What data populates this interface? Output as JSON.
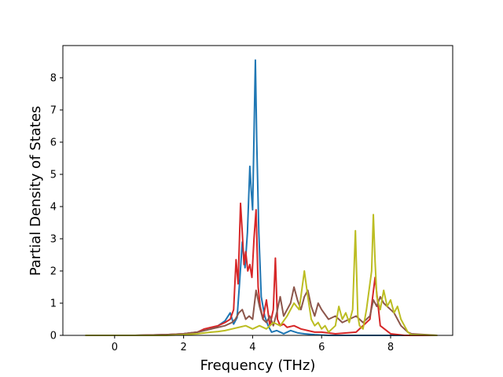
{
  "chart_data": {
    "type": "line",
    "title": "",
    "xlabel": "Frequency (THz)",
    "ylabel": "Partial Density of States",
    "xlim": [
      -1.5,
      9.8
    ],
    "ylim": [
      0,
      9.0
    ],
    "xticks": [
      0,
      2,
      4,
      6,
      8
    ],
    "yticks": [
      0,
      1,
      2,
      3,
      4,
      5,
      6,
      7,
      8
    ],
    "grid": false,
    "legend": "none",
    "series": [
      {
        "color": "#1f77b4",
        "x": [
          -0.85,
          0.6,
          1.5,
          2.0,
          2.4,
          2.8,
          3.0,
          3.2,
          3.35,
          3.45,
          3.55,
          3.62,
          3.7,
          3.78,
          3.85,
          3.92,
          3.96,
          4.0,
          4.04,
          4.08,
          4.12,
          4.18,
          4.25,
          4.35,
          4.45,
          4.55,
          4.7,
          4.9,
          5.1,
          5.3,
          5.5,
          5.8,
          6.2,
          6.6,
          7.0,
          7.5,
          8.0,
          8.4,
          9.35
        ],
        "y": [
          0.0,
          0.0,
          0.02,
          0.05,
          0.1,
          0.2,
          0.3,
          0.45,
          0.7,
          0.35,
          0.55,
          1.6,
          2.9,
          2.1,
          3.2,
          5.25,
          4.5,
          3.9,
          6.2,
          8.55,
          6.0,
          3.2,
          1.2,
          0.6,
          0.3,
          0.1,
          0.15,
          0.05,
          0.15,
          0.08,
          0.05,
          0.02,
          0.0,
          0.0,
          0.0,
          0.0,
          0.0,
          0.0,
          0.0
        ]
      },
      {
        "color": "#d62728",
        "x": [
          -0.85,
          0.6,
          1.5,
          2.0,
          2.4,
          2.6,
          2.8,
          3.0,
          3.2,
          3.35,
          3.45,
          3.52,
          3.58,
          3.65,
          3.7,
          3.75,
          3.8,
          3.86,
          3.92,
          3.98,
          4.04,
          4.1,
          4.16,
          4.22,
          4.3,
          4.4,
          4.5,
          4.6,
          4.66,
          4.72,
          4.8,
          4.9,
          5.0,
          5.2,
          5.4,
          5.6,
          5.8,
          6.0,
          6.4,
          7.0,
          7.4,
          7.55,
          7.7,
          8.0,
          8.4,
          9.35
        ],
        "y": [
          0.0,
          0.0,
          0.02,
          0.05,
          0.1,
          0.2,
          0.25,
          0.3,
          0.4,
          0.5,
          0.8,
          2.35,
          1.6,
          4.1,
          3.2,
          2.2,
          2.6,
          2.0,
          2.2,
          1.8,
          3.0,
          3.9,
          1.5,
          0.9,
          0.5,
          1.1,
          0.3,
          0.8,
          2.4,
          0.5,
          0.3,
          0.35,
          0.25,
          0.3,
          0.2,
          0.15,
          0.1,
          0.1,
          0.05,
          0.1,
          0.5,
          1.8,
          0.3,
          0.05,
          0.0,
          0.0
        ]
      },
      {
        "color": "#8c564b",
        "x": [
          -0.85,
          0.6,
          1.5,
          2.0,
          2.4,
          2.8,
          3.0,
          3.2,
          3.4,
          3.5,
          3.6,
          3.7,
          3.8,
          3.9,
          4.0,
          4.1,
          4.2,
          4.3,
          4.4,
          4.5,
          4.6,
          4.7,
          4.8,
          4.9,
          5.0,
          5.1,
          5.2,
          5.3,
          5.4,
          5.5,
          5.6,
          5.7,
          5.8,
          5.9,
          6.0,
          6.2,
          6.4,
          6.6,
          6.8,
          7.0,
          7.2,
          7.4,
          7.5,
          7.6,
          7.7,
          7.8,
          7.9,
          8.0,
          8.1,
          8.2,
          8.3,
          8.4,
          8.5,
          8.6,
          9.35
        ],
        "y": [
          0.0,
          0.0,
          0.02,
          0.05,
          0.1,
          0.2,
          0.25,
          0.3,
          0.4,
          0.5,
          0.7,
          0.8,
          0.5,
          0.6,
          0.5,
          1.4,
          0.9,
          0.5,
          0.4,
          0.6,
          0.3,
          0.7,
          1.2,
          0.6,
          0.8,
          1.0,
          1.5,
          1.1,
          0.8,
          1.2,
          1.4,
          0.9,
          0.6,
          1.0,
          0.8,
          0.5,
          0.6,
          0.4,
          0.5,
          0.6,
          0.4,
          0.6,
          1.1,
          0.9,
          1.2,
          1.0,
          0.9,
          0.8,
          0.7,
          0.5,
          0.3,
          0.2,
          0.1,
          0.05,
          0.0
        ]
      },
      {
        "color": "#bcbd22",
        "x": [
          -0.85,
          0.6,
          1.5,
          2.0,
          2.4,
          2.8,
          3.0,
          3.2,
          3.4,
          3.6,
          3.8,
          4.0,
          4.2,
          4.4,
          4.6,
          4.8,
          5.0,
          5.2,
          5.35,
          5.5,
          5.6,
          5.7,
          5.8,
          5.9,
          6.0,
          6.1,
          6.2,
          6.3,
          6.4,
          6.5,
          6.6,
          6.7,
          6.8,
          6.9,
          6.98,
          7.05,
          7.1,
          7.2,
          7.3,
          7.4,
          7.45,
          7.5,
          7.55,
          7.6,
          7.7,
          7.8,
          7.9,
          8.0,
          8.1,
          8.2,
          8.3,
          8.4,
          8.5,
          8.6,
          9.35
        ],
        "y": [
          0.0,
          0.0,
          0.0,
          0.02,
          0.05,
          0.1,
          0.12,
          0.15,
          0.2,
          0.25,
          0.3,
          0.2,
          0.3,
          0.2,
          0.4,
          0.3,
          0.6,
          1.0,
          0.8,
          2.0,
          1.2,
          0.5,
          0.3,
          0.4,
          0.2,
          0.3,
          0.1,
          0.2,
          0.3,
          0.9,
          0.5,
          0.7,
          0.4,
          0.8,
          3.25,
          0.6,
          0.3,
          0.2,
          0.8,
          1.6,
          2.0,
          3.75,
          2.3,
          1.2,
          0.8,
          1.4,
          0.9,
          1.1,
          0.7,
          0.9,
          0.5,
          0.3,
          0.1,
          0.02,
          0.0
        ]
      }
    ]
  }
}
